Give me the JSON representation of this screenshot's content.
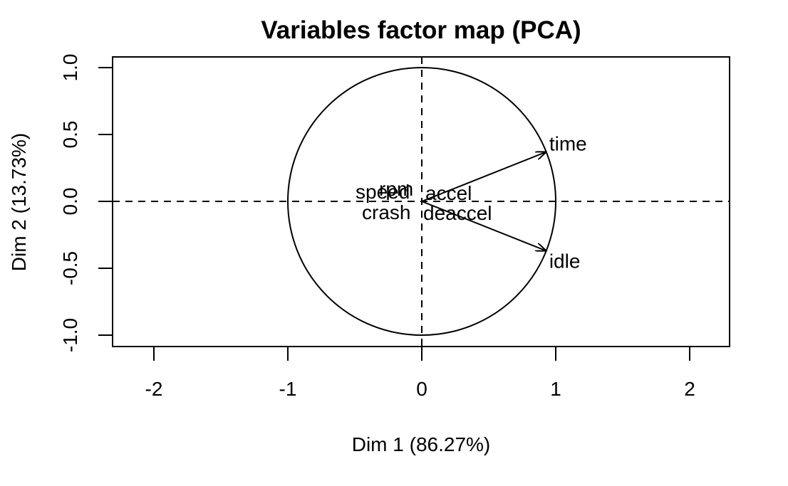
{
  "chart_data": {
    "type": "scatter",
    "subtype": "pca-variables-factor-map",
    "title": "Variables factor map (PCA)",
    "xlabel": "Dim 1 (86.27%)",
    "ylabel": "Dim 2 (13.73%)",
    "xlim": [
      -2.3,
      2.3
    ],
    "ylim": [
      -1.08,
      1.08
    ],
    "x_ticks": [
      -2,
      -1,
      0,
      1,
      2
    ],
    "y_ticks": [
      -1.0,
      -0.5,
      0.0,
      0.5,
      1.0
    ],
    "x_tick_labels": [
      "-2",
      "-1",
      "0",
      "1",
      "2"
    ],
    "y_tick_labels": [
      "-1.0",
      "-0.5",
      "0.0",
      "0.5",
      "1.0"
    ],
    "unit_circle": true,
    "reference_lines": "dashed at x=0 and y=0",
    "variables": [
      {
        "name": "time",
        "x": 0.93,
        "y": 0.37,
        "label_pos": "right"
      },
      {
        "name": "idle",
        "x": 0.93,
        "y": -0.37,
        "label_pos": "right"
      },
      {
        "name": "accel",
        "x": 0.0,
        "y": 0.0,
        "label_pos": "right"
      },
      {
        "name": "deaccel",
        "x": 0.0,
        "y": 0.0,
        "label_pos": "right"
      },
      {
        "name": "speed",
        "x": 0.0,
        "y": 0.0,
        "label_pos": "left"
      },
      {
        "name": "rpm",
        "x": 0.0,
        "y": 0.0,
        "label_pos": "left"
      },
      {
        "name": "crash",
        "x": 0.0,
        "y": 0.0,
        "label_pos": "left"
      }
    ]
  }
}
